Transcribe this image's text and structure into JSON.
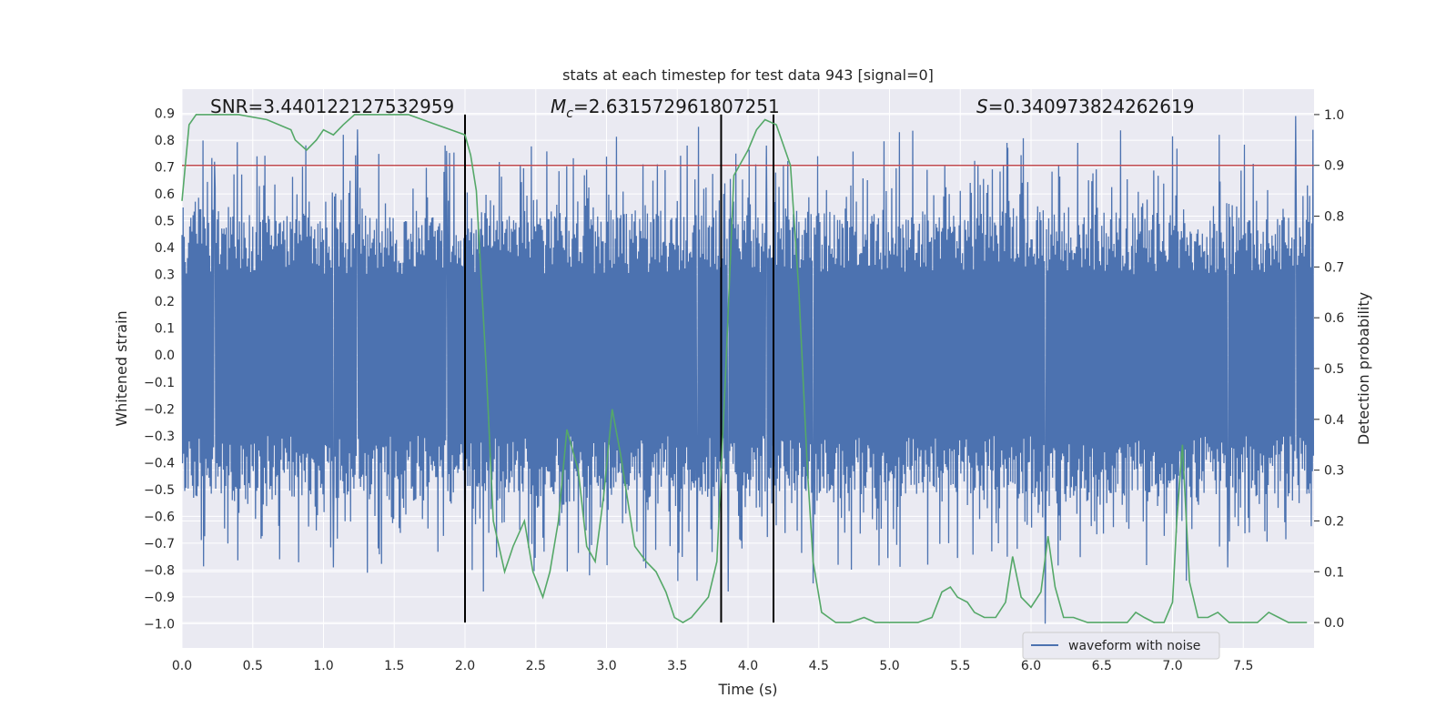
{
  "colors": {
    "plot_bg": "#EAEAF2",
    "grid": "#ffffff",
    "waveform": "#4C72B0",
    "probability": "#55A868",
    "threshold": "#C44E52",
    "marker": "#000000"
  },
  "chart_data": {
    "type": "line",
    "title": "stats at each timestep for test data 943 [signal=0]",
    "xlabel": "Time (s)",
    "ylabel_left": "Whitened strain",
    "ylabel_right": "Detection probability",
    "xlim": [
      0.0,
      8.0
    ],
    "ylim_left": [
      -1.09,
      0.99
    ],
    "ylim_right": [
      -0.05,
      1.05
    ],
    "x_ticks": [
      0.0,
      0.5,
      1.0,
      1.5,
      2.0,
      2.5,
      3.0,
      3.5,
      4.0,
      4.5,
      5.0,
      5.5,
      6.0,
      6.5,
      7.0,
      7.5
    ],
    "x_tick_labels": [
      "0.0",
      "0.5",
      "1.0",
      "1.5",
      "2.0",
      "2.5",
      "3.0",
      "3.5",
      "4.0",
      "4.5",
      "5.0",
      "5.5",
      "6.0",
      "6.5",
      "7.0",
      "7.5"
    ],
    "y_left_ticks": [
      0.9,
      0.8,
      0.7,
      0.6,
      0.5,
      0.4,
      0.3,
      0.2,
      0.1,
      0.0,
      -0.1,
      -0.2,
      -0.3,
      -0.4,
      -0.5,
      -0.6,
      -0.7,
      -0.8,
      -0.9,
      -1.0
    ],
    "y_left_tick_labels": [
      "0.9",
      "0.8",
      "0.7",
      "0.6",
      "0.5",
      "0.4",
      "0.3",
      "0.2",
      "0.1",
      "0.0",
      "−0.1",
      "−0.2",
      "−0.3",
      "−0.4",
      "−0.5",
      "−0.6",
      "−0.7",
      "−0.8",
      "−0.9",
      "−1.0"
    ],
    "y_right_ticks": [
      1.0,
      0.9,
      0.8,
      0.7,
      0.6,
      0.5,
      0.4,
      0.3,
      0.2,
      0.1,
      0.0
    ],
    "y_right_tick_labels": [
      "1.0",
      "0.9",
      "0.8",
      "0.7",
      "0.6",
      "0.5",
      "0.4",
      "0.3",
      "0.2",
      "0.1",
      "0.0"
    ],
    "threshold_right": 0.9,
    "vertical_markers_x": [
      2.0,
      3.81,
      4.18
    ],
    "waveform": {
      "name": "waveform with noise",
      "samples": 2048,
      "envelope_core": 0.3,
      "positive_peaks": [
        {
          "x": 0.23,
          "y": 0.72
        },
        {
          "x": 0.53,
          "y": 0.74
        },
        {
          "x": 1.14,
          "y": 0.82
        },
        {
          "x": 1.24,
          "y": 0.84
        },
        {
          "x": 1.87,
          "y": 0.76
        },
        {
          "x": 3.57,
          "y": 0.78
        },
        {
          "x": 3.65,
          "y": 0.85
        },
        {
          "x": 4.13,
          "y": 0.78
        },
        {
          "x": 5.07,
          "y": 0.83
        },
        {
          "x": 5.83,
          "y": 0.79
        },
        {
          "x": 6.33,
          "y": 0.79
        },
        {
          "x": 7.33,
          "y": 0.82
        },
        {
          "x": 7.87,
          "y": 0.89
        }
      ],
      "negative_peaks": [
        {
          "x": 0.69,
          "y": -0.76
        },
        {
          "x": 1.07,
          "y": -0.79
        },
        {
          "x": 1.31,
          "y": -0.81
        },
        {
          "x": 2.0,
          "y": -0.75
        },
        {
          "x": 2.13,
          "y": -0.88
        },
        {
          "x": 2.88,
          "y": -0.82
        },
        {
          "x": 3.64,
          "y": -0.84
        },
        {
          "x": 3.86,
          "y": -0.88
        },
        {
          "x": 4.46,
          "y": -0.85
        },
        {
          "x": 5.27,
          "y": -0.78
        },
        {
          "x": 6.1,
          "y": -1.0
        },
        {
          "x": 7.39,
          "y": -0.79
        }
      ]
    },
    "probability": {
      "name": "detection probability",
      "x": [
        0.0,
        0.05,
        0.1,
        0.2,
        0.4,
        0.6,
        0.77,
        0.8,
        0.88,
        0.95,
        1.0,
        1.07,
        1.14,
        1.22,
        1.3,
        1.4,
        1.6,
        1.8,
        1.9,
        2.0,
        2.04,
        2.08,
        2.15,
        2.2,
        2.28,
        2.34,
        2.42,
        2.48,
        2.55,
        2.6,
        2.66,
        2.72,
        2.8,
        2.86,
        2.92,
        2.98,
        3.04,
        3.1,
        3.2,
        3.28,
        3.35,
        3.42,
        3.48,
        3.54,
        3.6,
        3.66,
        3.72,
        3.78,
        3.84,
        3.9,
        4.0,
        4.06,
        4.12,
        4.2,
        4.3,
        4.36,
        4.42,
        4.46,
        4.52,
        4.62,
        4.72,
        4.82,
        4.9,
        5.0,
        5.2,
        5.3,
        5.37,
        5.43,
        5.48,
        5.55,
        5.6,
        5.67,
        5.75,
        5.82,
        5.87,
        5.93,
        6.0,
        6.07,
        6.12,
        6.17,
        6.23,
        6.3,
        6.4,
        6.55,
        6.68,
        6.74,
        6.8,
        6.87,
        6.94,
        7.0,
        7.03,
        7.07,
        7.12,
        7.18,
        7.25,
        7.32,
        7.4,
        7.5,
        7.6,
        7.68,
        7.75,
        7.82,
        7.95
      ],
      "y": [
        0.83,
        0.98,
        1.0,
        1.0,
        1.0,
        0.99,
        0.97,
        0.95,
        0.93,
        0.95,
        0.97,
        0.96,
        0.98,
        1.0,
        1.0,
        1.0,
        1.0,
        0.98,
        0.97,
        0.96,
        0.92,
        0.85,
        0.5,
        0.2,
        0.1,
        0.15,
        0.2,
        0.1,
        0.05,
        0.1,
        0.2,
        0.38,
        0.3,
        0.15,
        0.12,
        0.25,
        0.42,
        0.33,
        0.15,
        0.12,
        0.1,
        0.06,
        0.01,
        0.0,
        0.01,
        0.03,
        0.05,
        0.12,
        0.48,
        0.88,
        0.93,
        0.97,
        0.99,
        0.98,
        0.9,
        0.65,
        0.3,
        0.12,
        0.02,
        0.0,
        0.0,
        0.01,
        0.0,
        0.0,
        0.0,
        0.01,
        0.06,
        0.07,
        0.05,
        0.04,
        0.02,
        0.01,
        0.01,
        0.04,
        0.13,
        0.05,
        0.03,
        0.06,
        0.17,
        0.07,
        0.01,
        0.01,
        0.0,
        0.0,
        0.0,
        0.02,
        0.01,
        0.0,
        0.0,
        0.04,
        0.2,
        0.35,
        0.08,
        0.01,
        0.01,
        0.02,
        0.0,
        0.0,
        0.0,
        0.02,
        0.01,
        0.0,
        0.0
      ]
    },
    "annotations": [
      {
        "text": "SNR=3.440122127532959",
        "x": 0.2
      },
      {
        "text_prefix": "M",
        "text_sub": "c",
        "text_rest": "=2.631572961807251",
        "x": 2.6
      },
      {
        "text_prefix": "S",
        "text_rest": "=0.340973824262619",
        "x": 5.6
      }
    ],
    "legend": {
      "placement": "lower-right",
      "entries": [
        "waveform with noise"
      ]
    }
  }
}
